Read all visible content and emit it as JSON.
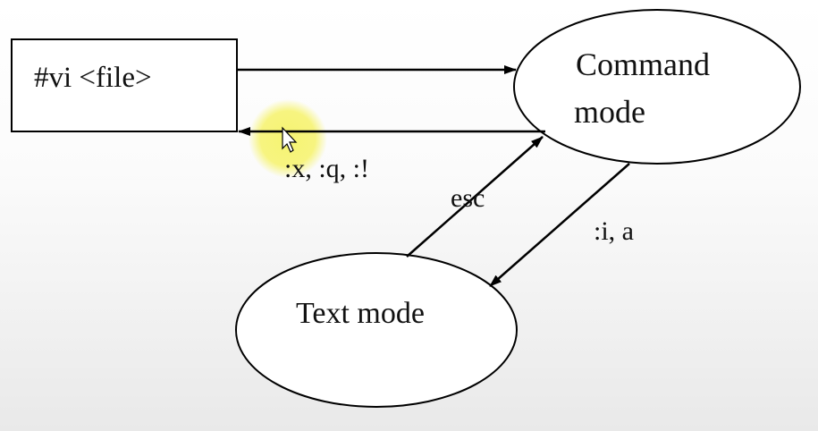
{
  "diagram": {
    "nodes": {
      "start_box": {
        "label": "#vi <file>"
      },
      "command_mode": {
        "label_line1": "Command",
        "label_line2": "mode"
      },
      "text_mode": {
        "label": "Text mode"
      }
    },
    "edges": {
      "open_file": {
        "from": "#vi <file>",
        "to": "Command mode",
        "label": ""
      },
      "quit": {
        "from": "Command mode",
        "to": "#vi <file>",
        "label": ":x, :q, :!"
      },
      "escape": {
        "from": "Text mode",
        "to": "Command mode",
        "label": "esc"
      },
      "insert": {
        "from": "Command mode",
        "to": "Text mode",
        "label": ":i, a"
      }
    }
  },
  "colors": {
    "stroke": "#000000",
    "cursor_highlight": "#f6f36a"
  }
}
